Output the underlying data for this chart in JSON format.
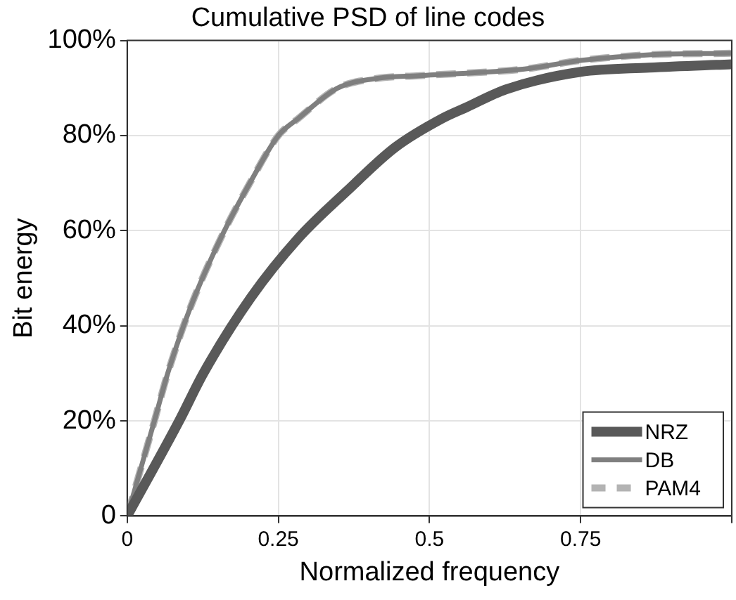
{
  "chart_data": {
    "type": "line",
    "title": "Cumulative PSD of line codes",
    "xlabel": "Normalized frequency",
    "ylabel": "Bit energy",
    "xlim": [
      0,
      1
    ],
    "xticks": [
      0,
      0.25,
      0.5,
      0.75,
      {
        "value": 1,
        "label": null
      }
    ],
    "ylim": [
      0,
      100
    ],
    "yticks": [
      0,
      {
        "value": 20,
        "label": "20%"
      },
      {
        "value": 40,
        "label": "40%"
      },
      {
        "value": 60,
        "label": "60%"
      },
      {
        "value": 80,
        "label": "80%"
      },
      {
        "value": 100,
        "label": "100%"
      }
    ],
    "grid": true,
    "legend": "bottom right",
    "marker": "none",
    "series": [
      {
        "name": "NRZ",
        "color": "#595959",
        "line_style": "solid",
        "x": [
          0,
          0.086,
          0.126,
          0.205,
          0.283,
          0.364,
          0.443,
          0.521,
          0.562,
          0.626,
          0.75,
          0.864,
          1.0
        ],
        "values": [
          0,
          20,
          30,
          46,
          58.4,
          68.4,
          77.5,
          83.6,
          86,
          89.7,
          93.4,
          94.3,
          95
        ]
      },
      {
        "name": "DB",
        "color": "#7f7f7f",
        "line_style": "solid",
        "x": [
          0,
          0.045,
          0.067,
          0.105,
          0.157,
          0.205,
          0.25,
          0.283,
          0.348,
          0.412,
          0.483,
          0.657,
          0.75,
          0.864,
          1.0
        ],
        "values": [
          0,
          20,
          30,
          44,
          59,
          70.5,
          80,
          83.6,
          90,
          92,
          92.6,
          94,
          95.8,
          97,
          97.3
        ]
      },
      {
        "name": "PAM4",
        "color": "#b3b3b3",
        "line_style": "dashed",
        "x": [
          0,
          0.045,
          0.067,
          0.105,
          0.157,
          0.205,
          0.25,
          0.283,
          0.348,
          0.412,
          0.483,
          0.657,
          0.75,
          0.864,
          1.0
        ],
        "values": [
          0,
          20,
          30,
          44,
          59,
          70.5,
          80,
          83.6,
          90,
          92,
          92.6,
          94,
          95.8,
          97,
          97.3
        ]
      }
    ]
  }
}
